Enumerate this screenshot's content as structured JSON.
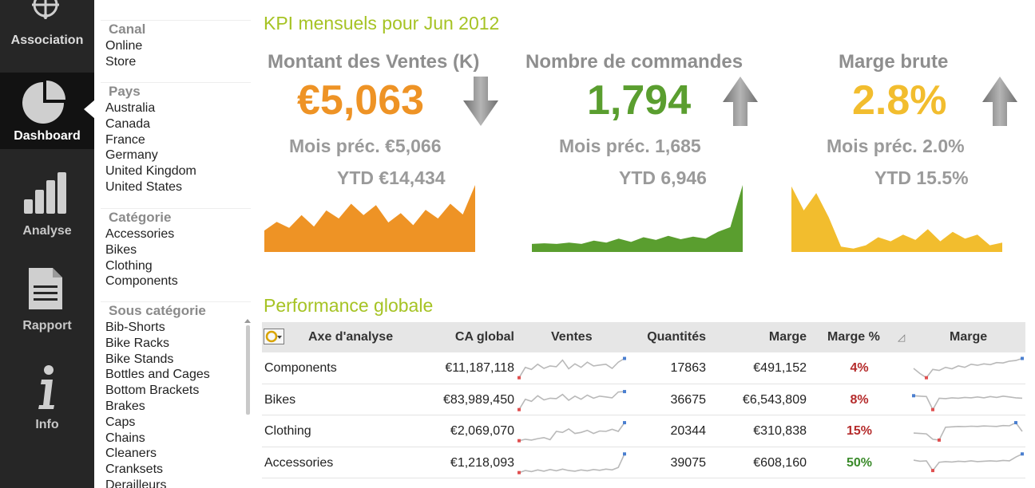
{
  "nav": {
    "items": [
      {
        "label": "Association",
        "icon": "network-icon",
        "active": false
      },
      {
        "label": "Dashboard",
        "icon": "pie-chart-icon",
        "active": true
      },
      {
        "label": "Analyse",
        "icon": "bar-chart-icon",
        "active": false
      },
      {
        "label": "Rapport",
        "icon": "document-icon",
        "active": false
      },
      {
        "label": "Info",
        "icon": "info-icon",
        "active": false
      }
    ]
  },
  "filters": {
    "groups": [
      {
        "title": "Canal",
        "items": [
          "Online",
          "Store"
        ]
      },
      {
        "title": "Pays",
        "items": [
          "Australia",
          "Canada",
          "France",
          "Germany",
          "United Kingdom",
          "United States"
        ]
      },
      {
        "title": "Catégorie",
        "items": [
          "Accessories",
          "Bikes",
          "Clothing",
          "Components"
        ]
      },
      {
        "title": "Sous catégorie",
        "items": [
          "Bib-Shorts",
          "Bike Racks",
          "Bike Stands",
          "Bottles and Cages",
          "Bottom Brackets",
          "Brakes",
          "Caps",
          "Chains",
          "Cleaners",
          "Cranksets",
          "Derailleurs"
        ]
      }
    ]
  },
  "kpi": {
    "section_title": "KPI mensuels pour Jun 2012",
    "cards": [
      {
        "title": "Montant des Ventes (K)",
        "value": "€5,063",
        "prev": "Mois préc. €5,066",
        "ytd": "YTD €14,434",
        "trend": "down",
        "color": "#ee9325",
        "area": [
          0.32,
          0.45,
          0.36,
          0.55,
          0.38,
          0.62,
          0.5,
          0.72,
          0.55,
          0.7,
          0.44,
          0.58,
          0.4,
          0.63,
          0.5,
          0.72,
          0.56,
          1.0
        ]
      },
      {
        "title": "Nombre de commandes",
        "value": "1,794",
        "prev": "Mois préc. 1,685",
        "ytd": "YTD 6,946",
        "trend": "up",
        "color": "#5a9e2f",
        "area": [
          0.12,
          0.13,
          0.12,
          0.14,
          0.12,
          0.17,
          0.14,
          0.2,
          0.15,
          0.22,
          0.18,
          0.24,
          0.19,
          0.23,
          0.2,
          0.3,
          0.37,
          1.0
        ]
      },
      {
        "title": "Marge brute",
        "value": "2.8%",
        "prev": "Mois préc. 2.0%",
        "ytd": "YTD 15.5%",
        "trend": "up",
        "color": "#f2bd2e",
        "area": [
          0.98,
          0.62,
          0.88,
          0.52,
          0.08,
          0.05,
          0.1,
          0.22,
          0.16,
          0.26,
          0.18,
          0.34,
          0.16,
          0.3,
          0.2,
          0.26,
          0.1,
          0.14
        ]
      }
    ]
  },
  "perf": {
    "section_title": "Performance globale",
    "columns": {
      "axis": "Axe d'analyse",
      "ca": "CA global",
      "ventes": "Ventes",
      "qte": "Quantités",
      "marge": "Marge",
      "marge_pct": "Marge %",
      "marge_spark": "Marge"
    },
    "rows": [
      {
        "axis": "Components",
        "ca": "€11,187,118",
        "qte": "17863",
        "marge": "€491,152",
        "pct": "4%",
        "pct_color": "#b52b2b",
        "ventes_spark": [
          0.05,
          0.55,
          0.45,
          0.7,
          0.5,
          0.62,
          0.58,
          0.9,
          0.48,
          0.72,
          0.55,
          0.8,
          0.62,
          0.66,
          0.7,
          0.5,
          0.8,
          0.98
        ],
        "marge_spark": [
          0.5,
          0.25,
          0.05,
          0.45,
          0.4,
          0.55,
          0.48,
          0.62,
          0.55,
          0.7,
          0.65,
          0.72,
          0.68,
          0.78,
          0.76,
          0.85,
          0.88,
          0.98
        ]
      },
      {
        "axis": "Bikes",
        "ca": "€83,989,450",
        "qte": "36675",
        "marge": "€6,543,809",
        "pct": "8%",
        "pct_color": "#b52b2b",
        "ventes_spark": [
          0.05,
          0.55,
          0.45,
          0.72,
          0.52,
          0.6,
          0.58,
          0.78,
          0.5,
          0.7,
          0.55,
          0.75,
          0.6,
          0.7,
          0.66,
          0.62,
          0.9,
          0.92
        ],
        "marge_spark": [
          0.72,
          0.7,
          0.68,
          0.05,
          0.6,
          0.58,
          0.62,
          0.6,
          0.64,
          0.62,
          0.66,
          0.62,
          0.68,
          0.64,
          0.7,
          0.66,
          0.62,
          0.6
        ]
      },
      {
        "axis": "Clothing",
        "ca": "€2,069,070",
        "qte": "20344",
        "marge": "€310,838",
        "pct": "15%",
        "pct_color": "#b52b2b",
        "ventes_spark": [
          0.05,
          0.12,
          0.08,
          0.15,
          0.2,
          0.1,
          0.5,
          0.45,
          0.62,
          0.4,
          0.45,
          0.55,
          0.4,
          0.52,
          0.5,
          0.6,
          0.5,
          0.92
        ],
        "marge_spark": [
          0.42,
          0.4,
          0.38,
          0.12,
          0.08,
          0.7,
          0.72,
          0.74,
          0.73,
          0.75,
          0.74,
          0.76,
          0.75,
          0.74,
          0.78,
          0.77,
          0.92,
          0.5
        ]
      },
      {
        "axis": "Accessories",
        "ca": "€1,218,093",
        "qte": "39075",
        "marge": "€608,160",
        "pct": "50%",
        "pct_color": "#3a8a2a",
        "ventes_spark": [
          0.05,
          0.15,
          0.1,
          0.18,
          0.12,
          0.2,
          0.14,
          0.22,
          0.15,
          0.12,
          0.18,
          0.14,
          0.2,
          0.16,
          0.22,
          0.18,
          0.3,
          0.95
        ],
        "marge_spark": [
          0.65,
          0.6,
          0.62,
          0.15,
          0.55,
          0.58,
          0.56,
          0.6,
          0.58,
          0.62,
          0.58,
          0.6,
          0.62,
          0.6,
          0.64,
          0.62,
          0.8,
          0.95
        ]
      }
    ]
  }
}
